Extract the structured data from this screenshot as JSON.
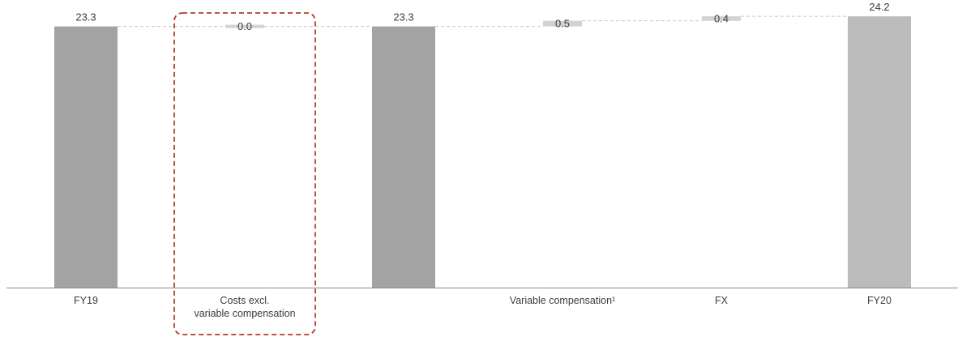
{
  "chart_data": {
    "type": "bar",
    "subtype": "waterfall",
    "categories": [
      "FY19",
      "Costs excl. variable compensation",
      "",
      "Variable compensation¹",
      "FX",
      "FY20"
    ],
    "category_lines": [
      [
        "FY19"
      ],
      [
        "Costs excl.",
        "variable compensation"
      ],
      [
        ""
      ],
      [
        "Variable compensation¹"
      ],
      [
        "FX"
      ],
      [
        "FY20"
      ]
    ],
    "steps": [
      {
        "kind": "total",
        "value": 23.3,
        "label": "23.3"
      },
      {
        "kind": "delta",
        "value": 0.0,
        "label": "0.0"
      },
      {
        "kind": "total",
        "value": 23.3,
        "label": "23.3"
      },
      {
        "kind": "delta",
        "value": 0.5,
        "label": "0.5"
      },
      {
        "kind": "delta",
        "value": 0.4,
        "label": "0.4"
      },
      {
        "kind": "total",
        "value": 24.2,
        "label": "24.2"
      }
    ],
    "ylim": [
      0,
      24.5
    ],
    "grid": false,
    "highlighted_category": "Costs excl. variable compensation",
    "colors": {
      "total_bar": "#a3a3a3",
      "final_bar": "#bcbcbc",
      "delta_marker": "#d2d2d2",
      "connector": "#c8c8c8",
      "axis": "#8a8a8a",
      "highlight_box": "#b83a26"
    }
  }
}
